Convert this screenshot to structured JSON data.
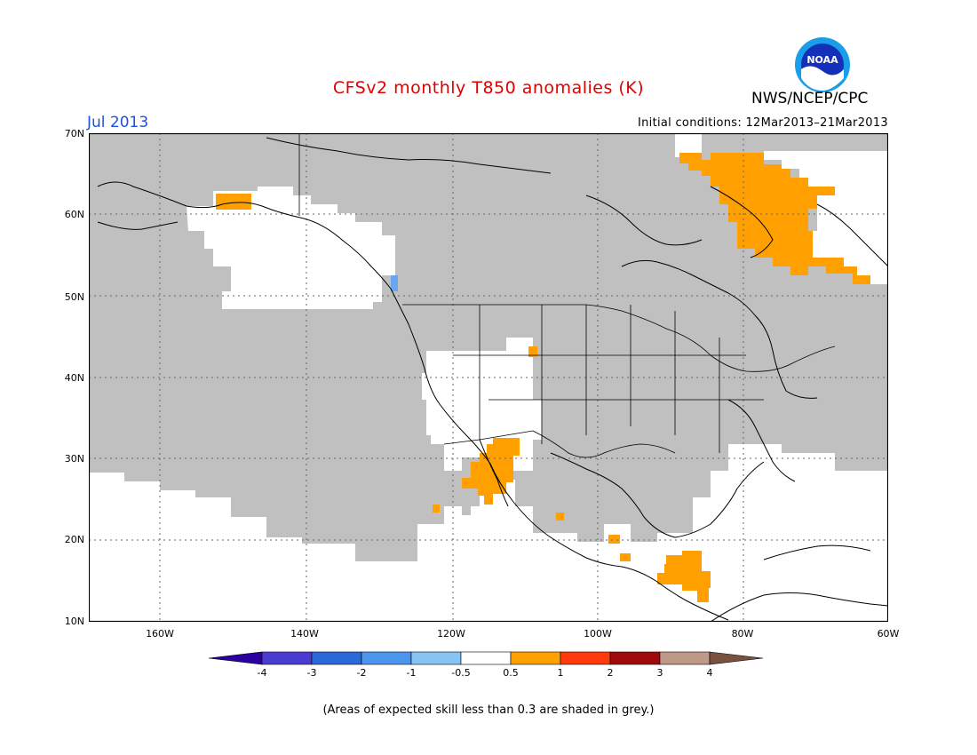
{
  "title": "CFSv2 monthly T850 anomalies (K)",
  "month": "Jul 2013",
  "agency": "NWS/NCEP/CPC",
  "logo_text": "NOAA",
  "initial_conditions": "Initial conditions: 12Mar2013–21Mar2013",
  "footnote": "(Areas of expected skill less than 0.3 are shaded in grey.)",
  "colors": {
    "grey_low_skill": "#c0c0c0",
    "orange_0_5_to_1": "#ffa000",
    "lightblue_-1_to_-0_5": "#6aa6ef",
    "frame": "#000000",
    "title": "#e00000",
    "month": "#2050e0"
  },
  "axes": {
    "lat_labels": [
      "70N",
      "60N",
      "50N",
      "40N",
      "30N",
      "20N",
      "10N"
    ],
    "lon_labels": [
      "160W",
      "140W",
      "120W",
      "100W",
      "80W",
      "60W"
    ]
  },
  "colorbar": {
    "labels": [
      "-4",
      "-3",
      "-2",
      "-1",
      "-0.5",
      "0.5",
      "1",
      "2",
      "3",
      "4"
    ],
    "colors": [
      "#2a00a0",
      "#4a3cd0",
      "#2a6ad8",
      "#4a96ee",
      "#86c4f6",
      "#ffffff",
      "#ffa000",
      "#ff3a0a",
      "#a00a0a",
      "#c09a88",
      "#7a5040"
    ]
  }
}
